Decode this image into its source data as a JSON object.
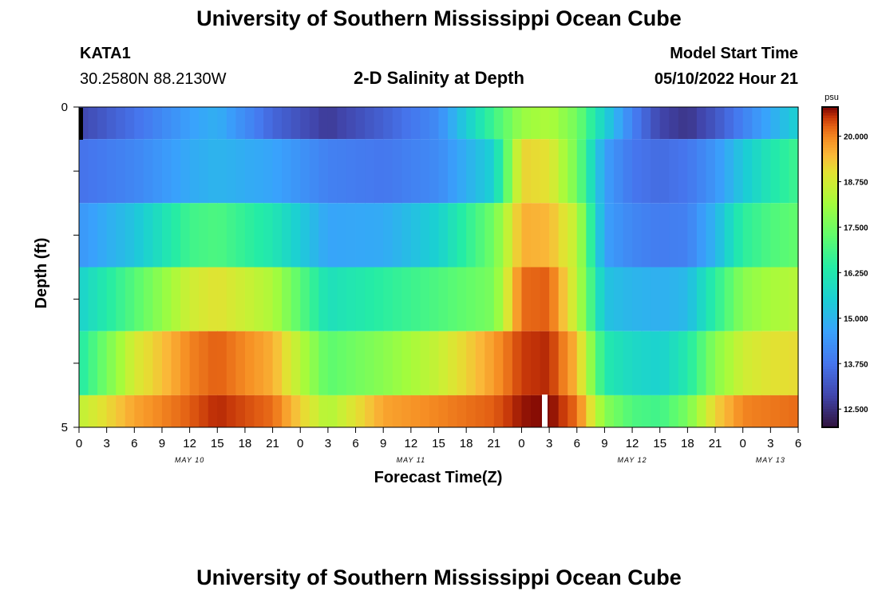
{
  "header": {
    "title_top": "University of Southern Mississippi Ocean Cube",
    "title_bottom": "University of Southern Mississippi Ocean Cube",
    "station": "KATA1",
    "location": "30.2580N  88.2130W",
    "plot_title": "2-D Salinity at Depth",
    "model_start_label": "Model Start Time",
    "model_start_value": "05/10/2022 Hour 21"
  },
  "chart_data": {
    "type": "heatmap",
    "title": "2-D Salinity at Depth",
    "xlabel": "Forecast Time(Z)",
    "ylabel": "Depth (ft)",
    "y_tick_labels": [
      "0",
      "5"
    ],
    "ylim": [
      0,
      5
    ],
    "x_tick_labels": [
      "0",
      "3",
      "6",
      "9",
      "12",
      "15",
      "18",
      "21",
      "0",
      "3",
      "6",
      "9",
      "12",
      "15",
      "18",
      "21",
      "0",
      "3",
      "6",
      "9",
      "12",
      "15",
      "18",
      "21",
      "0",
      "3",
      "6"
    ],
    "date_labels": [
      "MAY 10",
      "MAY 11",
      "MAY 12",
      "MAY 13"
    ],
    "x_hours": [
      0,
      78
    ],
    "colorbar": {
      "unit": "psu",
      "ticks": [
        "12.500",
        "13.750",
        "15.000",
        "16.250",
        "17.500",
        "18.750",
        "20.000"
      ],
      "range": [
        12.0,
        20.8
      ]
    },
    "depth_layers": [
      "0-0.5 ft",
      "0.5-1.5 ft",
      "1.5-2.5 ft",
      "2.5-3.5 ft",
      "3.5-4.5 ft",
      "4.5-5 ft"
    ],
    "keyframe_hours": [
      0,
      6,
      12,
      15,
      21,
      27,
      33,
      39,
      45,
      48,
      51,
      54,
      57,
      60,
      63,
      66,
      69,
      72,
      75,
      78
    ],
    "salinity_keyframes": [
      [
        12.9,
        13.7,
        14.6,
        14.9,
        13.5,
        12.7,
        13.4,
        14.2,
        16.8,
        18.0,
        18.3,
        17.5,
        15.6,
        14.0,
        12.9,
        12.6,
        13.2,
        14.0,
        14.8,
        15.6
      ],
      [
        13.7,
        14.1,
        14.8,
        15.0,
        14.7,
        14.0,
        13.8,
        14.2,
        15.6,
        19.2,
        19.0,
        17.5,
        14.6,
        13.8,
        13.6,
        13.8,
        14.4,
        15.4,
        16.2,
        16.8
      ],
      [
        14.4,
        15.3,
        16.8,
        17.0,
        16.2,
        14.7,
        14.8,
        15.6,
        17.5,
        19.6,
        19.5,
        18.5,
        14.6,
        14.1,
        13.9,
        14.0,
        15.0,
        16.5,
        17.0,
        17.3
      ],
      [
        15.6,
        17.1,
        18.7,
        19.0,
        18.3,
        16.0,
        16.5,
        17.0,
        17.6,
        20.2,
        20.3,
        18.5,
        15.3,
        15.0,
        14.9,
        15.1,
        16.5,
        17.8,
        18.2,
        18.4
      ],
      [
        16.3,
        18.8,
        20.0,
        20.3,
        19.6,
        17.2,
        17.8,
        18.6,
        19.8,
        20.5,
        20.6,
        19.5,
        16.3,
        15.8,
        15.6,
        16.3,
        17.8,
        18.7,
        19.0,
        19.1
      ],
      [
        18.5,
        19.7,
        20.3,
        20.6,
        20.2,
        18.3,
        19.7,
        20.0,
        20.3,
        20.7,
        20.8,
        20.2,
        17.8,
        17.0,
        16.8,
        17.6,
        19.2,
        20.0,
        20.1,
        20.2
      ]
    ]
  }
}
